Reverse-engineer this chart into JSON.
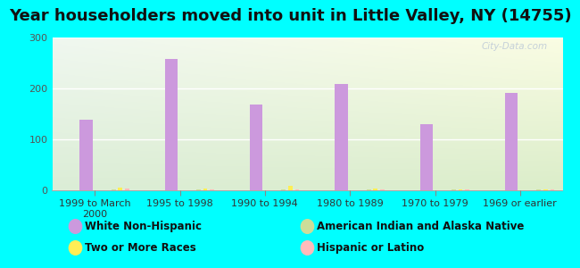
{
  "title": "Year householders moved into unit in Little Valley, NY (14755)",
  "background_color": "#00FFFF",
  "categories": [
    "1999 to March\n2000",
    "1995 to 1998",
    "1990 to 1994",
    "1980 to 1989",
    "1970 to 1979",
    "1969 or earlier"
  ],
  "series": {
    "White Non-Hispanic": {
      "values": [
        138,
        258,
        168,
        208,
        130,
        191
      ],
      "color": "#cc99dd"
    },
    "American Indian and Alaska Native": {
      "values": [
        2,
        2,
        2,
        2,
        2,
        2
      ],
      "color": "#ccdd99"
    },
    "Two or More Races": {
      "values": [
        5,
        3,
        8,
        3,
        2,
        2
      ],
      "color": "#ffee55"
    },
    "Hispanic or Latino": {
      "values": [
        3,
        2,
        2,
        2,
        2,
        2
      ],
      "color": "#ffbbbb"
    }
  },
  "ylim": [
    0,
    300
  ],
  "yticks": [
    0,
    100,
    200,
    300
  ],
  "bar_width": 0.15,
  "title_fontsize": 13,
  "tick_fontsize": 8,
  "legend_fontsize": 8.5,
  "watermark": "City-Data.com",
  "grad_top": "#f0f8ff",
  "grad_bottom": "#e0eecc"
}
